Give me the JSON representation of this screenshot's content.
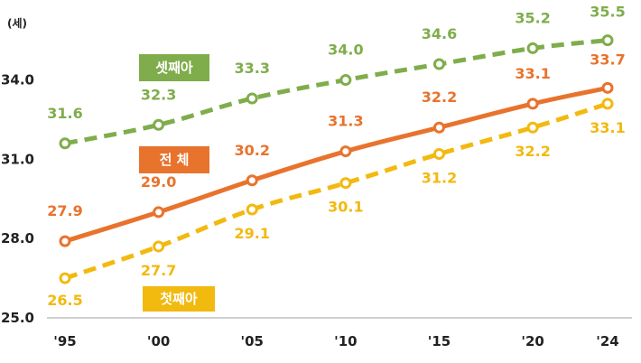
{
  "chart_data": {
    "type": "line",
    "unit_label": "(세)",
    "x": [
      "'95",
      "'00",
      "'05",
      "'10",
      "'15",
      "'20",
      "'24"
    ],
    "x_values": [
      1995,
      2000,
      2005,
      2010,
      2015,
      2020,
      2024
    ],
    "ylim": [
      25.0,
      36.0
    ],
    "y_ticks": [
      "25.0",
      "28.0",
      "31.0",
      "34.0"
    ],
    "y_tick_values": [
      25,
      28,
      31,
      34
    ],
    "grid": false,
    "series": [
      {
        "name": "셋째아",
        "color": "#7fad4c",
        "dashed": true,
        "values": [
          31.6,
          32.3,
          33.3,
          34.0,
          34.6,
          35.2,
          35.5
        ],
        "labels": [
          "31.6",
          "32.3",
          "33.3",
          "34.0",
          "34.6",
          "35.2",
          "35.5"
        ]
      },
      {
        "name": "전  체",
        "color": "#e8732d",
        "dashed": false,
        "values": [
          27.9,
          29.0,
          30.2,
          31.3,
          32.2,
          33.1,
          33.7
        ],
        "labels": [
          "27.9",
          "29.0",
          "30.2",
          "31.3",
          "32.2",
          "33.1",
          "33.7"
        ]
      },
      {
        "name": "첫째아",
        "color": "#f2b90f",
        "dashed": true,
        "values": [
          26.5,
          27.7,
          29.1,
          30.1,
          31.2,
          32.2,
          33.1
        ],
        "labels": [
          "26.5",
          "27.7",
          "29.1",
          "30.1",
          "31.2",
          "32.2",
          "33.1"
        ]
      }
    ]
  }
}
